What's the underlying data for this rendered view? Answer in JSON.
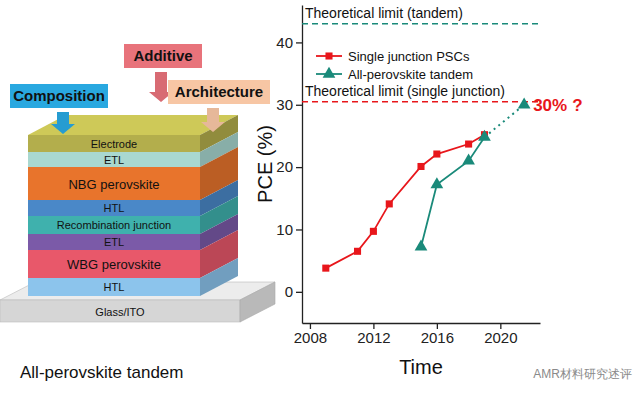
{
  "chart_data": {
    "type": "line",
    "x_label": "Time",
    "y_label": "PCE (%)",
    "xlim": [
      2007.5,
      2022.5
    ],
    "xticks": [
      2008,
      2012,
      2016,
      2020
    ],
    "ylim": [
      -5,
      46
    ],
    "yticks": [
      0,
      10,
      20,
      30,
      40
    ],
    "grid": false,
    "legend": "upper left",
    "series": [
      {
        "name": "Single junction PSCs",
        "color": "#e8161b",
        "marker": "square",
        "line_style": "solid",
        "x": [
          2009,
          2011,
          2012,
          2013,
          2015,
          2016,
          2018,
          2019
        ],
        "values": [
          3.8,
          6.5,
          9.7,
          14.1,
          20.1,
          22.1,
          23.7,
          25.2
        ]
      },
      {
        "name": "All-perovskite tandem",
        "color": "#1a8a7a",
        "marker": "triangle",
        "line_style": "solid",
        "x": [
          2015,
          2016,
          2018,
          2019
        ],
        "values": [
          7.2,
          17.2,
          21.0,
          24.8
        ]
      }
    ],
    "projection": {
      "x": [
        2019,
        2021.5
      ],
      "values": [
        24.8,
        30
      ],
      "color": "#1a8a7a",
      "line_style": "dotted",
      "marker": "triangle",
      "label": "30%",
      "label_suffix": "?"
    },
    "hlines": [
      {
        "value": 43,
        "label": "Theoretical limit (tandem)",
        "color": "#1a8a7a",
        "line_style": "dashed"
      },
      {
        "value": 30.5,
        "label": "Theoretical limit (single junction)",
        "color": "#e8161b",
        "line_style": "dashed"
      }
    ]
  },
  "diagram": {
    "levers": [
      "Composition",
      "Additive",
      "Architecture"
    ],
    "layers": [
      "Electrode",
      "ETL",
      "NBG perovskite",
      "HTL",
      "Recombination junction",
      "ETL",
      "WBG perovskite",
      "HTL",
      "Glass/ITO"
    ],
    "caption": "All-perovskite tandem"
  },
  "watermark": "AMR材料研究述评"
}
